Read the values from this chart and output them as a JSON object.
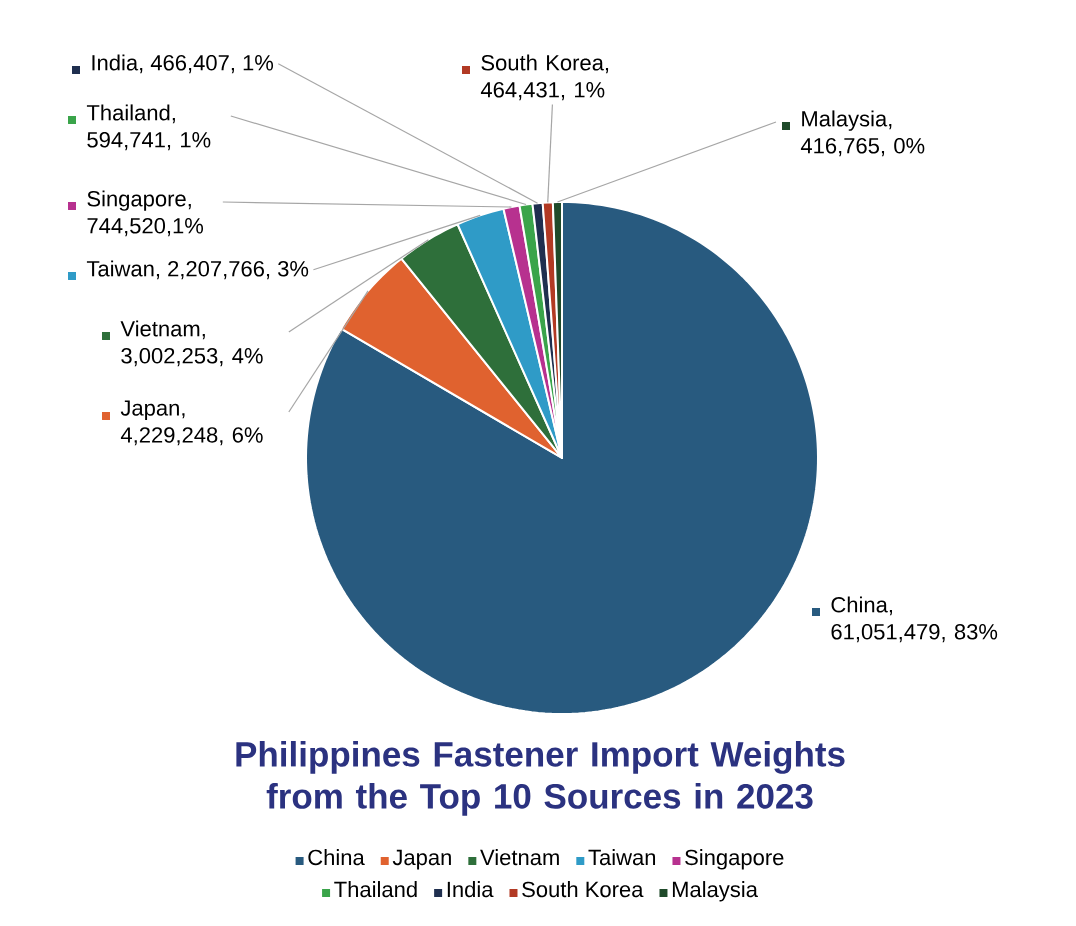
{
  "chart_data": {
    "type": "pie",
    "title": "Philippines Fastener Import Weights from the Top 10 Sources in 2023",
    "categories": [
      "China",
      "Japan",
      "Vietnam",
      "Taiwan",
      "Singapore",
      "Thailand",
      "India",
      "South Korea",
      "Malaysia"
    ],
    "values": [
      61051479,
      4229248,
      3002253,
      2207766,
      744520,
      594741,
      466407,
      464431,
      416765
    ],
    "colors": [
      "#285a7f",
      "#e0622f",
      "#2e6f3a",
      "#2f9bc7",
      "#b7318f",
      "#3aa44a",
      "#1f2f4f",
      "#b23a24",
      "#1f4a2a"
    ],
    "value_labels": [
      "China, 61,051,479, 83%",
      "Japan, 4,229,248, 6%",
      "Vietnam, 3,002,253, 4%",
      "Taiwan, 2,207,766, 3%",
      "Singapore, 744,520,1%",
      "Thailand, 594,741, 1%",
      "India, 466,407, 1%",
      "South Korea, 464,431, 1%",
      "Malaysia, 416,765, 0%"
    ],
    "legend": "bottom"
  }
}
